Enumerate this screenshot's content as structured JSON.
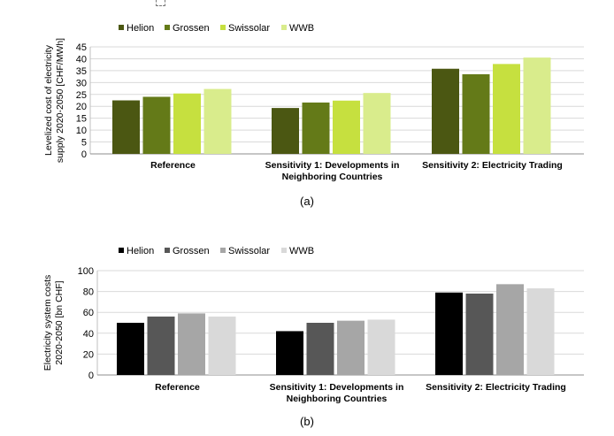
{
  "chart_data": [
    {
      "type": "bar",
      "panel_label": "(a)",
      "categories": [
        "Reference",
        "Sensitivity 1: Developments in Neighboring Countries",
        "Sensitivity 2: Electricity Trading"
      ],
      "category_lines": [
        [
          "Reference"
        ],
        [
          "Sensitivity 1: Developments in",
          "Neighboring Countries"
        ],
        [
          "Sensitivity 2: Electricity Trading"
        ]
      ],
      "ylabel_lines": [
        "Levelized cost of electricity",
        "supply 2020-2050 [CHF/MWh]"
      ],
      "ylim": [
        0,
        45
      ],
      "yticks": [
        0,
        5,
        10,
        15,
        20,
        25,
        30,
        35,
        40,
        45
      ],
      "grid": true,
      "legend_position": "top",
      "series": [
        {
          "name": "Helion",
          "color": "#4b5712",
          "values": [
            22.5,
            19.3,
            35.8
          ]
        },
        {
          "name": "Grossen",
          "color": "#647a18",
          "values": [
            24.0,
            21.6,
            33.5
          ]
        },
        {
          "name": "Swissolar",
          "color": "#c6e03f",
          "values": [
            25.4,
            22.4,
            37.8
          ]
        },
        {
          "name": "WWB",
          "color": "#d9ec8c",
          "values": [
            27.3,
            25.6,
            40.5
          ]
        }
      ]
    },
    {
      "type": "bar",
      "panel_label": "(b)",
      "categories": [
        "Reference",
        "Sensitivity 1: Developments in Neighboring Countries",
        "Sensitivity 2: Electricity Trading"
      ],
      "category_lines": [
        [
          "Reference"
        ],
        [
          "Sensitivity 1: Developments in",
          "Neighboring Countries"
        ],
        [
          "Sensitivity 2: Electricity Trading"
        ]
      ],
      "ylabel_lines": [
        "Electricity system costs",
        "2020-2050 [bn CHF]"
      ],
      "ylim": [
        0,
        100
      ],
      "yticks": [
        0,
        20,
        40,
        60,
        80,
        100
      ],
      "grid": true,
      "legend_position": "top",
      "series": [
        {
          "name": "Helion",
          "color": "#000000",
          "values": [
            50,
            42,
            79
          ]
        },
        {
          "name": "Grossen",
          "color": "#575757",
          "values": [
            56,
            50,
            78
          ]
        },
        {
          "name": "Swissolar",
          "color": "#a6a6a6",
          "values": [
            59,
            52,
            87
          ]
        },
        {
          "name": "WWB",
          "color": "#d9d9d9",
          "values": [
            56,
            53,
            83
          ]
        }
      ]
    }
  ]
}
